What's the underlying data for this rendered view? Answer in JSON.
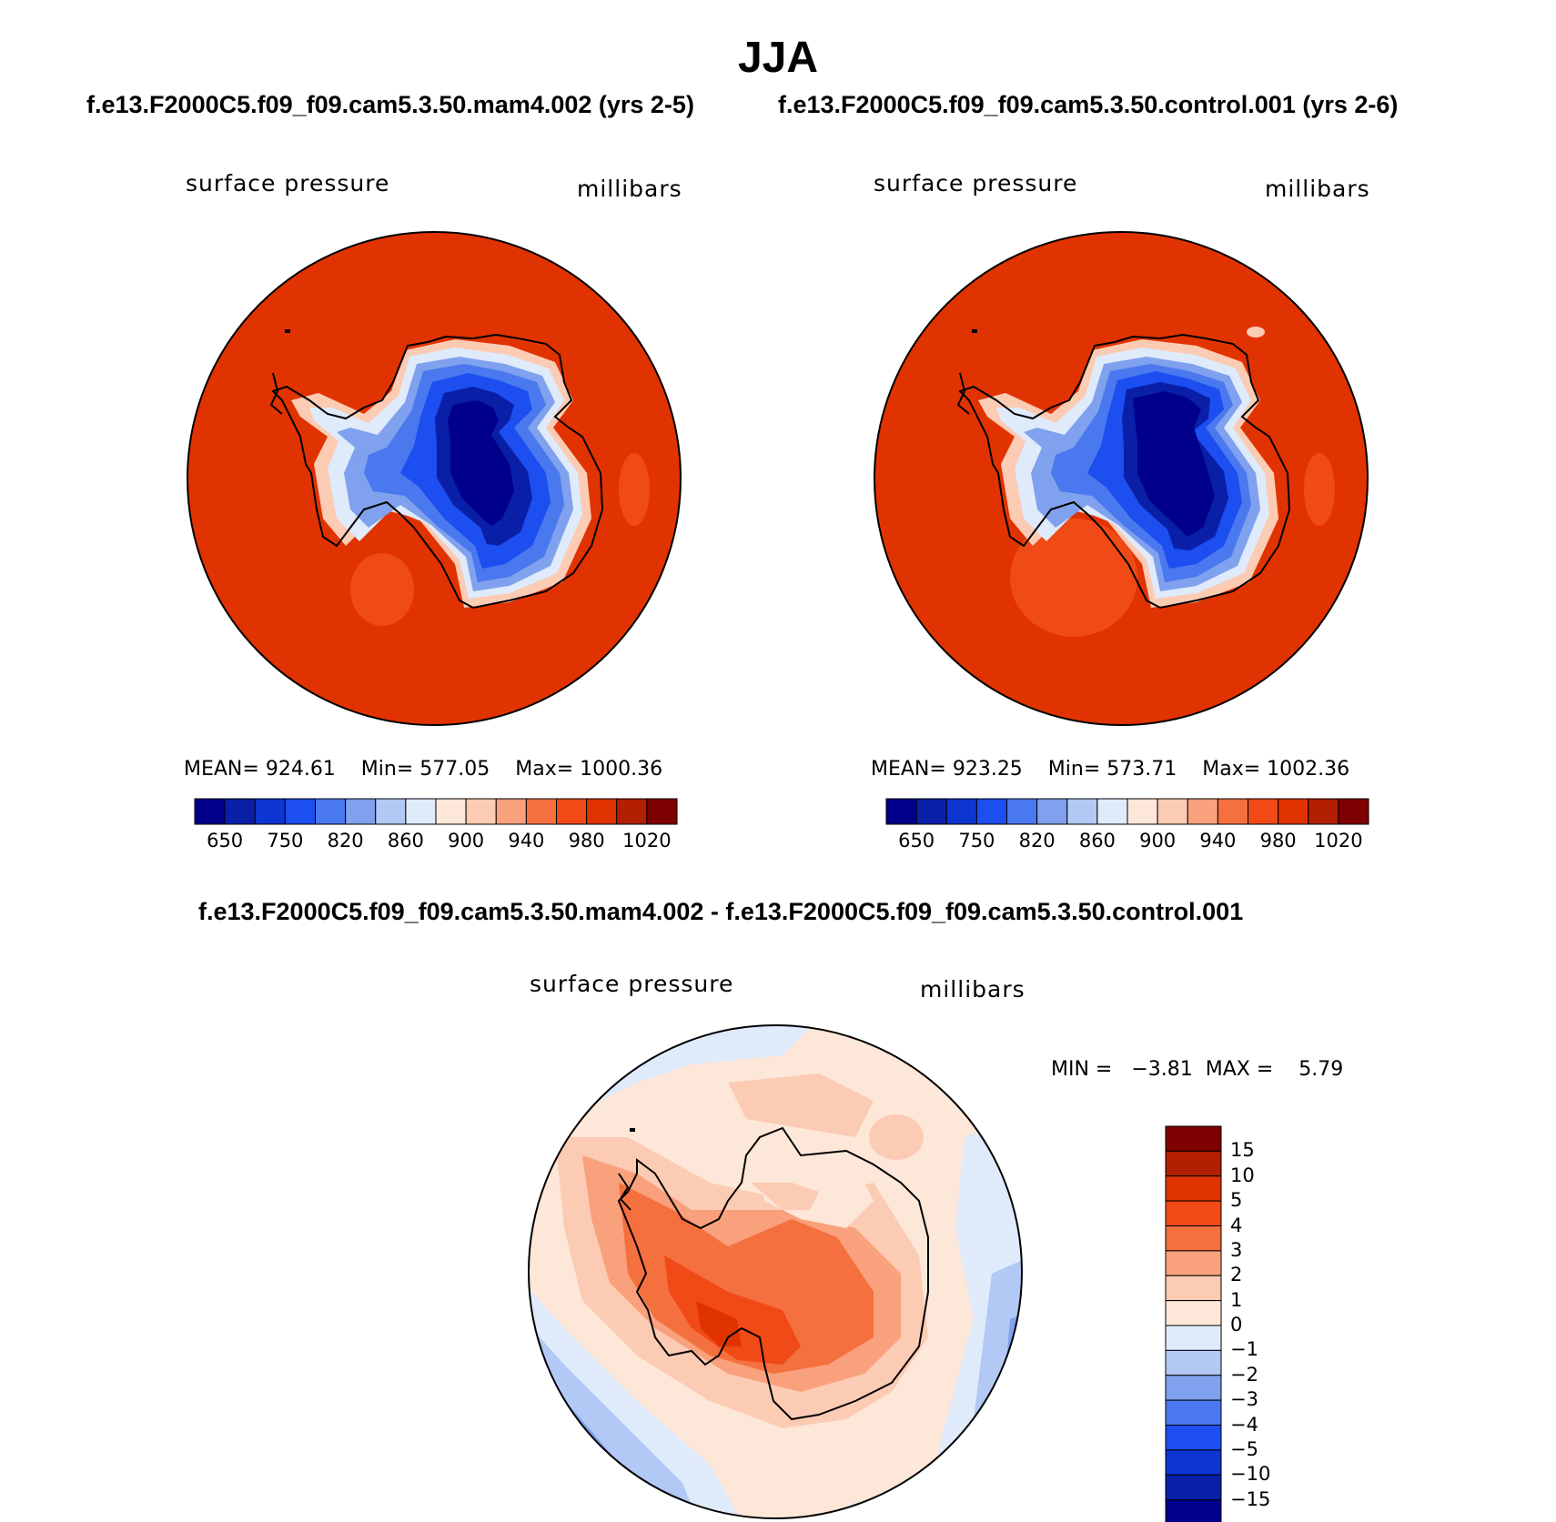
{
  "title": "JJA",
  "subtitle_top_left": "f.e13.F2000C5.f09_f09.cam5.3.50.mam4.002 (yrs 2-5)",
  "subtitle_top_right": "f.e13.F2000C5.f09_f09.cam5.3.50.control.001 (yrs 2-6)",
  "subtitle_diff": "f.e13.F2000C5.f09_f09.cam5.3.50.mam4.002 - f.e13.F2000C5.f09_f09.cam5.3.50.control.001",
  "panels": [
    {
      "variable": "surface pressure",
      "units": "millibars",
      "mean_label": "MEAN=",
      "mean": "924.61",
      "min_label": "Min=",
      "min": "577.05",
      "max_label": "Max=",
      "max": "1000.36"
    },
    {
      "variable": "surface pressure",
      "units": "millibars",
      "mean_label": "MEAN=",
      "mean": "923.25",
      "min_label": "Min=",
      "min": "573.71",
      "max_label": "Max=",
      "max": "1002.36"
    },
    {
      "variable": "surface pressure",
      "units": "millibars",
      "minmax_text": "MIN =   −3.81  MAX =    5.79"
    }
  ],
  "colorbar_main": {
    "colors": [
      "#00008b",
      "#0a1fa8",
      "#0d35cf",
      "#1c4ef0",
      "#4a78ee",
      "#7fa1ee",
      "#b2c8f5",
      "#dfeafb",
      "#fde7d9",
      "#fccbb3",
      "#f9a07c",
      "#f5703f",
      "#f04a17",
      "#e13301",
      "#b21f02",
      "#7f0000"
    ],
    "tick_labels": [
      "650",
      "750",
      "820",
      "860",
      "900",
      "940",
      "980",
      "1020"
    ]
  },
  "colorbar_diff": {
    "colors": [
      "#00008b",
      "#0a1fa8",
      "#0d35cf",
      "#1c4ef0",
      "#4a78ee",
      "#7fa1ee",
      "#b2c8f5",
      "#dfeafb",
      "#fde7d9",
      "#fccbb3",
      "#f9a07c",
      "#f5703f",
      "#f04a17",
      "#e13301",
      "#b21f02",
      "#7f0000"
    ],
    "tick_labels": [
      "15",
      "10",
      "5",
      "4",
      "3",
      "2",
      "1",
      "0",
      "−1",
      "−2",
      "−3",
      "−4",
      "−5",
      "−10",
      "−15"
    ]
  },
  "colors": {
    "ocean": "#e13301",
    "antarctica_deep": "#00008b",
    "diff_pos": "#f5703f",
    "diff_neg": "#7fa1ee"
  }
}
